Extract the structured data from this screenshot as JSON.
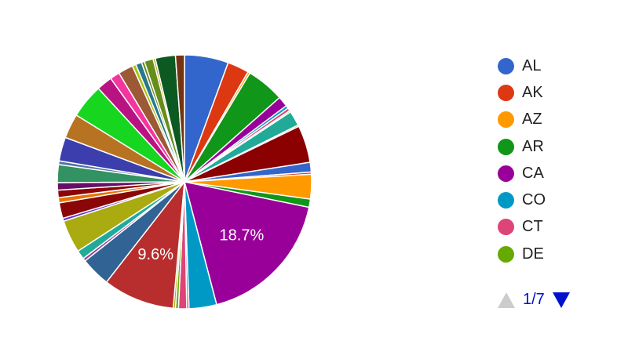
{
  "chart_data": {
    "type": "pie",
    "slices": [
      {
        "label": "AL",
        "value": 5.9,
        "color": "#3366cc"
      },
      {
        "label": "AK",
        "value": 2.9,
        "color": "#dc3912"
      },
      {
        "label": "AZ",
        "value": 0.3,
        "color": "#ff9900"
      },
      {
        "label": "AR",
        "value": 5.1,
        "color": "#109618"
      },
      {
        "label": "CA",
        "value": 1.4,
        "color": "#990099"
      },
      {
        "label": "CO",
        "value": 0.4,
        "color": "#0099c6"
      },
      {
        "label": "CT",
        "value": 0.4,
        "color": "#dd4477"
      },
      {
        "label": "DE",
        "value": 0.2,
        "color": "#66aa00"
      },
      {
        "label": "",
        "value": 2.0,
        "color": "#22aa99"
      },
      {
        "label": "",
        "value": 0.2,
        "color": "#aaaa11"
      },
      {
        "label": "",
        "value": 5.0,
        "color": "#8b0000"
      },
      {
        "label": "",
        "value": 1.3,
        "color": "#3366cc"
      },
      {
        "label": "",
        "value": 0.3,
        "color": "#dc3912"
      },
      {
        "label": "",
        "value": 3.3,
        "color": "#ff9900"
      },
      {
        "label": "",
        "value": 1.1,
        "color": "#109618"
      },
      {
        "label": "",
        "value": 18.7,
        "color": "#990099",
        "display": "18.7%"
      },
      {
        "label": "",
        "value": 3.7,
        "color": "#0099c6"
      },
      {
        "label": "",
        "value": 0.3,
        "color": "#dd4477"
      },
      {
        "label": "",
        "value": 1.1,
        "color": "#dd4477"
      },
      {
        "label": "",
        "value": 0.4,
        "color": "#66aa00"
      },
      {
        "label": "",
        "value": 0.3,
        "color": "#aaaa11"
      },
      {
        "label": "",
        "value": 9.6,
        "color": "#b82e2e",
        "display": "9.6%"
      },
      {
        "label": "",
        "value": 4.0,
        "color": "#316395"
      },
      {
        "label": "",
        "value": 0.4,
        "color": "#994499"
      },
      {
        "label": "",
        "value": 1.2,
        "color": "#22aa99"
      },
      {
        "label": "",
        "value": 4.4,
        "color": "#aaaa11"
      },
      {
        "label": "",
        "value": 0.4,
        "color": "#6633cc"
      },
      {
        "label": "",
        "value": 2.1,
        "color": "#8b0707"
      },
      {
        "label": "",
        "value": 0.7,
        "color": "#e67300"
      },
      {
        "label": "",
        "value": 1.0,
        "color": "#8b0707"
      },
      {
        "label": "",
        "value": 1.0,
        "color": "#651067"
      },
      {
        "label": "",
        "value": 2.4,
        "color": "#329262"
      },
      {
        "label": "",
        "value": 0.5,
        "color": "#5574a6"
      },
      {
        "label": "",
        "value": 3.2,
        "color": "#3b3eac"
      },
      {
        "label": "",
        "value": 3.3,
        "color": "#b77322"
      },
      {
        "label": "",
        "value": 4.6,
        "color": "#16d620"
      },
      {
        "label": "",
        "value": 2.1,
        "color": "#b91383"
      },
      {
        "label": "",
        "value": 1.3,
        "color": "#f4359e"
      },
      {
        "label": "",
        "value": 2.0,
        "color": "#9c5935"
      },
      {
        "label": "",
        "value": 0.5,
        "color": "#a9c413"
      },
      {
        "label": "",
        "value": 0.8,
        "color": "#2a778d"
      },
      {
        "label": "",
        "value": 0.4,
        "color": "#668d1c"
      },
      {
        "label": "",
        "value": 1.2,
        "color": "#668d1c"
      },
      {
        "label": "",
        "value": 0.3,
        "color": "#bea413"
      },
      {
        "label": "",
        "value": 2.7,
        "color": "#0c5922"
      },
      {
        "label": "",
        "value": 1.2,
        "color": "#743411"
      }
    ],
    "legend_position": "right",
    "legend_page": "1/7"
  }
}
